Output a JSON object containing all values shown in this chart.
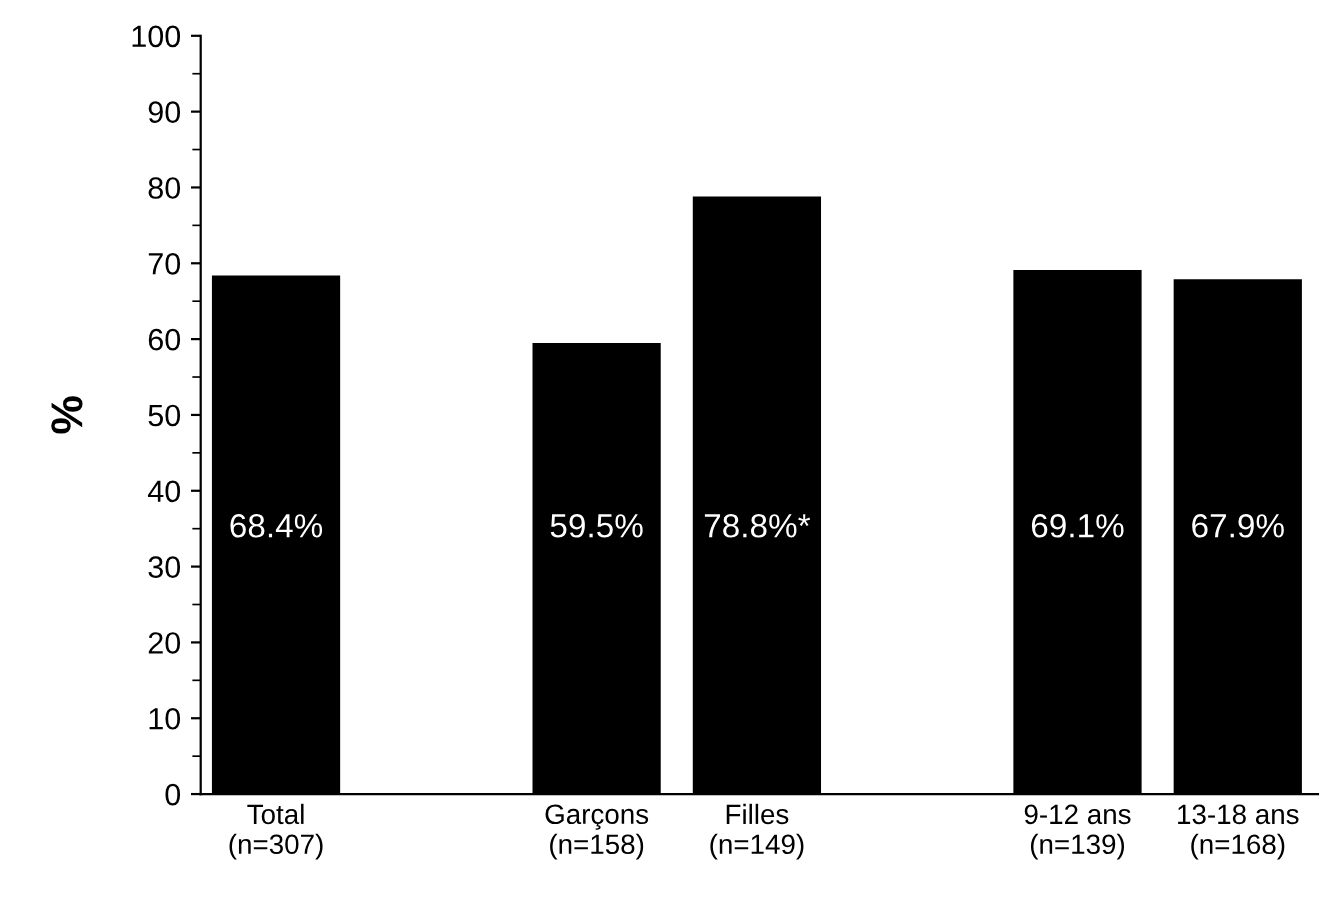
{
  "chart_data": {
    "type": "bar",
    "ylabel": "%",
    "categories": [
      "Total\n(n=307)",
      null,
      "Garçons\n(n=158)",
      "Filles\n(n=149)",
      null,
      "9-12 ans\n(n=139)",
      "13-18 ans\n(n=168)"
    ],
    "values": [
      68.4,
      null,
      59.5,
      78.8,
      null,
      69.1,
      67.9
    ],
    "value_labels": [
      "68.4%",
      null,
      "59.5%",
      "78.8%*",
      null,
      "69.1%",
      "67.9%"
    ],
    "color": "#000000",
    "ylim": [
      0,
      100
    ],
    "yticks": [
      0,
      10,
      20,
      30,
      40,
      50,
      60,
      70,
      80,
      90,
      100
    ],
    "grid": false
  }
}
